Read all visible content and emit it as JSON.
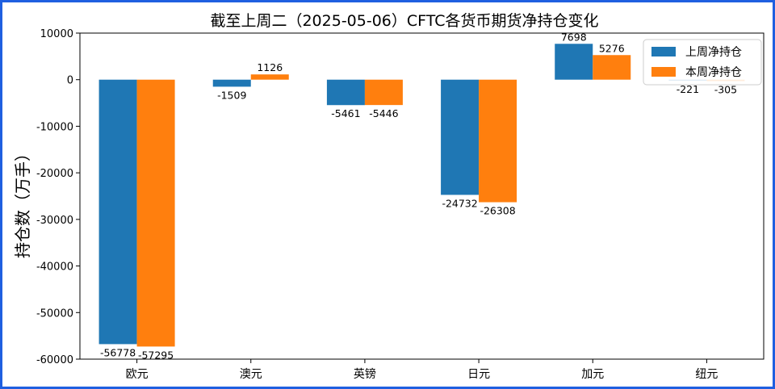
{
  "chart_data": {
    "type": "bar",
    "title": "截至上周二（2025-05-06）CFTC各货币期货净持仓变化",
    "xlabel": "",
    "ylabel": "持仓数（万手）",
    "categories": [
      "欧元",
      "澳元",
      "英镑",
      "日元",
      "加元",
      "纽元"
    ],
    "series": [
      {
        "name": "上周净持仓",
        "color": "#1f77b4",
        "values": [
          -56778,
          -1509,
          -5461,
          -24732,
          7698,
          -221
        ]
      },
      {
        "name": "本周净持仓",
        "color": "#ff7f0e",
        "values": [
          -57295,
          1126,
          -5446,
          -26308,
          5276,
          -305
        ]
      }
    ],
    "ylim": [
      -60000,
      10000
    ],
    "yticks": [
      10000,
      0,
      -10000,
      -20000,
      -30000,
      -40000,
      -50000,
      -60000
    ],
    "grid": false,
    "legend_position": "top-right"
  }
}
